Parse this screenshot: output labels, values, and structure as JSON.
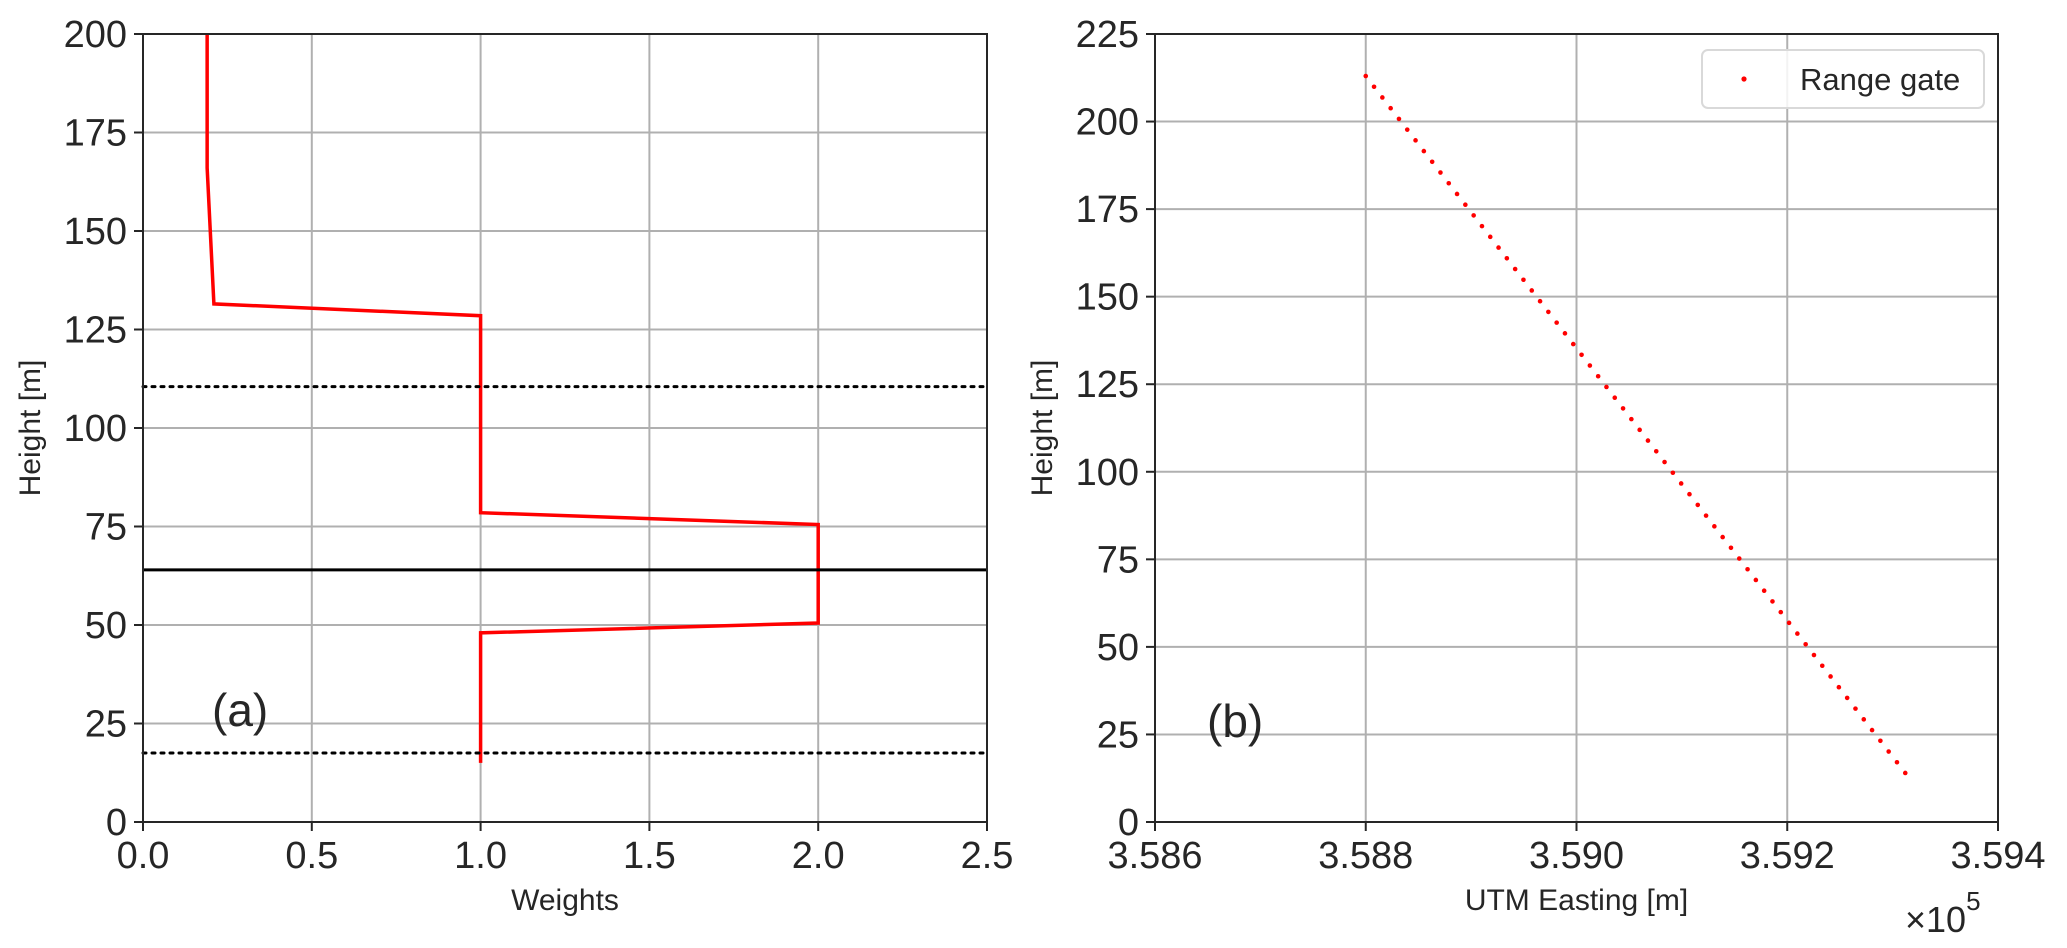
{
  "chart_data": [
    {
      "type": "line",
      "panel_label": "(a)",
      "xlabel": "Weights",
      "ylabel": "Height [m]",
      "xlim": [
        0,
        2.5
      ],
      "ylim": [
        0,
        200
      ],
      "xticks": [
        0.0,
        0.5,
        1.0,
        1.5,
        2.0,
        2.5
      ],
      "xtick_labels": [
        "0.0",
        "0.5",
        "1.0",
        "1.5",
        "2.0",
        "2.5"
      ],
      "yticks": [
        0,
        25,
        50,
        75,
        100,
        125,
        150,
        175,
        200
      ],
      "ytick_labels": [
        "0",
        "25",
        "50",
        "75",
        "100",
        "125",
        "150",
        "175",
        "200"
      ],
      "grid": true,
      "series": [
        {
          "color": "#ff0000",
          "style": "solid",
          "x": [
            0.19,
            0.19,
            0.21,
            1.0,
            1.0,
            1.0,
            2.0,
            2.0,
            1.0,
            1.0
          ],
          "y": [
            200,
            166,
            131.5,
            128.5,
            110,
            78.5,
            75.5,
            50.5,
            48,
            15
          ]
        }
      ],
      "hlines": [
        {
          "y": 64,
          "color": "#000000",
          "style": "solid"
        },
        {
          "y": 110.5,
          "color": "#000000",
          "style": "dotted"
        },
        {
          "y": 17.5,
          "color": "#000000",
          "style": "dotted"
        }
      ]
    },
    {
      "type": "scatter",
      "panel_label": "(b)",
      "xlabel": "UTM Easting [m]",
      "ylabel": "Height [m]",
      "xlim": [
        358600,
        359400
      ],
      "ylim": [
        0,
        225
      ],
      "xticks": [
        358600,
        358800,
        359000,
        359200,
        359400
      ],
      "xtick_labels": [
        "3.586",
        "3.588",
        "3.590",
        "3.592",
        "3.594"
      ],
      "x_offset_label": {
        "base": "×10",
        "exponent": "5"
      },
      "yticks": [
        0,
        25,
        50,
        75,
        100,
        125,
        150,
        175,
        200,
        225
      ],
      "ytick_labels": [
        "0",
        "25",
        "50",
        "75",
        "100",
        "125",
        "150",
        "175",
        "200",
        "225"
      ],
      "grid": true,
      "legend": {
        "placement": "top-right",
        "entries": [
          "Range gate"
        ]
      },
      "series": [
        {
          "name": "Range gate",
          "color": "#ff0000",
          "marker": "dot",
          "x_start": 358800,
          "y_start": 213,
          "x_end": 359312,
          "y_end": 14,
          "count": 66
        }
      ]
    }
  ]
}
